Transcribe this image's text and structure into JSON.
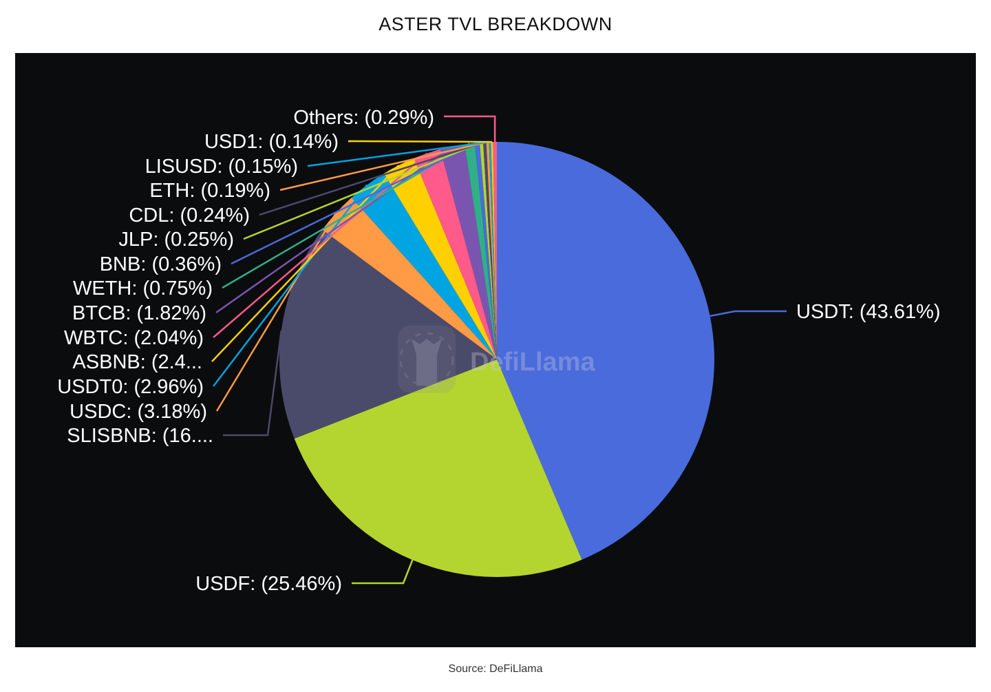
{
  "chart_data": {
    "type": "pie",
    "title": "ASTER TVL BREAKDOWN",
    "source": "Source: DeFiLlama",
    "watermark": "DefiLlama",
    "background": "#0b0c0e",
    "slices": [
      {
        "name": "USDT",
        "value": 43.61,
        "label": "USDT: (43.61%)",
        "color": "#4a6bdc"
      },
      {
        "name": "USDF",
        "value": 25.46,
        "label": "USDF: (25.46%)",
        "color": "#b4d52f"
      },
      {
        "name": "SLISBNB",
        "value": 16.1,
        "label": "SLISBNB: (16....",
        "color": "#4a4a6a"
      },
      {
        "name": "USDC",
        "value": 3.18,
        "label": "USDC: (3.18%)",
        "color": "#ff9a45"
      },
      {
        "name": "USDT0",
        "value": 2.96,
        "label": "USDT0: (2.96%)",
        "color": "#00a4e0"
      },
      {
        "name": "ASBNB",
        "value": 2.46,
        "label": "ASBNB: (2.4...",
        "color": "#ffd000"
      },
      {
        "name": "WBTC",
        "value": 2.04,
        "label": "WBTC: (2.04%)",
        "color": "#ff5a8a"
      },
      {
        "name": "BTCB",
        "value": 1.82,
        "label": "BTCB: (1.82%)",
        "color": "#7a55b0"
      },
      {
        "name": "WETH",
        "value": 0.75,
        "label": "WETH: (0.75%)",
        "color": "#30b088"
      },
      {
        "name": "BNB",
        "value": 0.36,
        "label": "BNB: (0.36%)",
        "color": "#4a6bdc"
      },
      {
        "name": "JLP",
        "value": 0.25,
        "label": "JLP: (0.25%)",
        "color": "#b4d52f"
      },
      {
        "name": "CDL",
        "value": 0.24,
        "label": "CDL: (0.24%)",
        "color": "#4a4a6a"
      },
      {
        "name": "ETH",
        "value": 0.19,
        "label": "ETH: (0.19%)",
        "color": "#ff9a45"
      },
      {
        "name": "LISUSD",
        "value": 0.15,
        "label": "LISUSD: (0.15%)",
        "color": "#00a4e0"
      },
      {
        "name": "USD1",
        "value": 0.14,
        "label": "USD1: (0.14%)",
        "color": "#ffd000"
      },
      {
        "name": "Others",
        "value": 0.29,
        "label": "Others: (0.29%)",
        "color": "#ff5a8a"
      }
    ]
  }
}
